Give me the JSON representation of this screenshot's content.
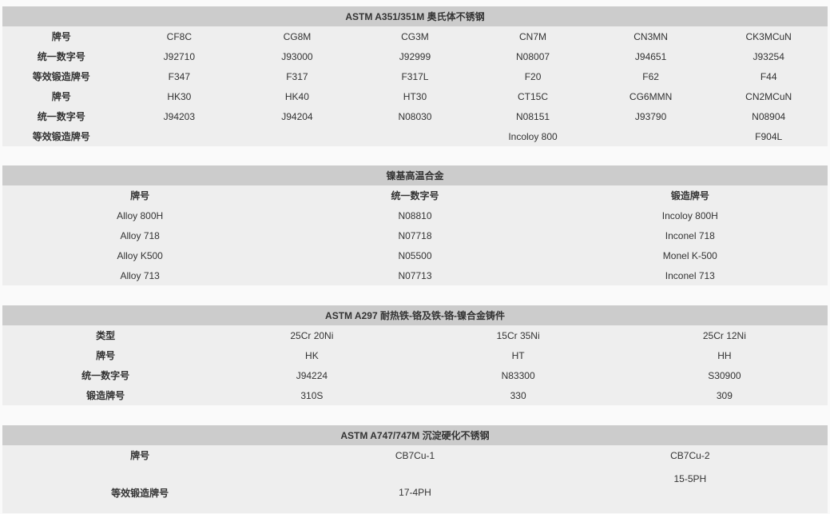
{
  "tables": [
    {
      "title": "ASTM A351/351M  奥氏体不锈钢",
      "rows": [
        [
          "牌号",
          "CF8C",
          "CG8M",
          "CG3M",
          "CN7M",
          "CN3MN",
          "CK3MCuN"
        ],
        [
          "统一数字号",
          "J92710",
          "J93000",
          "J92999",
          "N08007",
          "J94651",
          "J93254"
        ],
        [
          "等效锻造牌号",
          "F347",
          "F317",
          "F317L",
          "F20",
          "F62",
          "F44"
        ],
        [
          "牌号",
          "HK30",
          "HK40",
          "HT30",
          "CT15C",
          "CG6MMN",
          "CN2MCuN"
        ],
        [
          "统一数字号",
          "J94203",
          "J94204",
          "N08030",
          "N08151",
          "J93790",
          "N08904"
        ],
        [
          "等效锻造牌号",
          "",
          "",
          "",
          "Incoloy 800",
          "",
          "F904L"
        ]
      ]
    },
    {
      "title": "镍基高温合金",
      "header": [
        "牌号",
        "统一数字号",
        "锻造牌号"
      ],
      "rows": [
        [
          "Alloy 800H",
          "N08810",
          "Incoloy 800H"
        ],
        [
          "Alloy 718",
          "N07718",
          "Inconel 718"
        ],
        [
          "Alloy K500",
          "N05500",
          "Monel K-500"
        ],
        [
          "Alloy 713",
          "N07713",
          "Inconel 713"
        ]
      ]
    },
    {
      "title": "ASTM A297 耐热铁-铬及铁-铬-镍合金铸件",
      "rows": [
        [
          "类型",
          "25Cr 20Ni",
          "15Cr 35Ni",
          "25Cr 12Ni"
        ],
        [
          "牌号",
          "HK",
          "HT",
          "HH"
        ],
        [
          "统一数字号",
          "J94224",
          "N83300",
          "S30900"
        ],
        [
          "锻造牌号",
          "310S",
          "330",
          "309"
        ]
      ]
    },
    {
      "title": "ASTM A747/747M  沉淀硬化不锈钢",
      "rows": [
        [
          "牌号",
          "CB7Cu-1",
          "CB7Cu-2"
        ],
        [
          "等效锻造牌号",
          "17-4PH",
          "15-5PH"
        ]
      ]
    }
  ]
}
